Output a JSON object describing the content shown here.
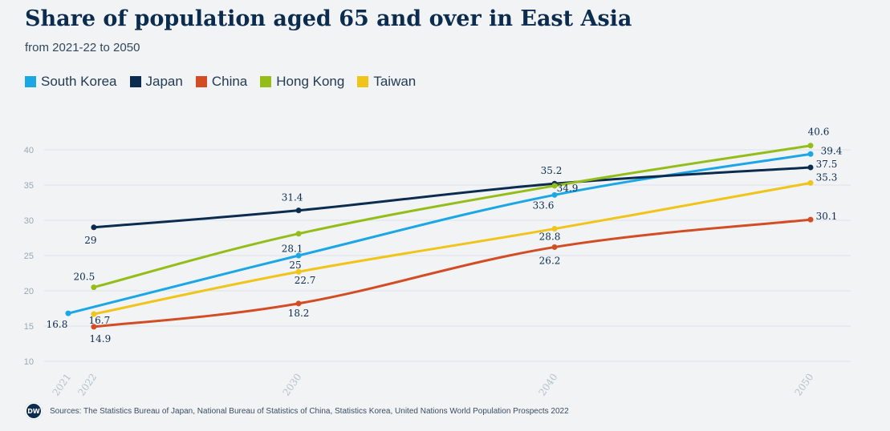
{
  "header": {
    "title": "Share of population aged 65 and over in East Asia",
    "subtitle": "from 2021-22 to 2050"
  },
  "footer": {
    "logo_text": "DW",
    "source": "Sources: The Statistics Bureau of Japan, National Bureau of Statistics of China, Statistics Korea, United Nations World Population Prospects 2022"
  },
  "chart_data": {
    "type": "line",
    "title": "Share of population aged 65 and over in East Asia",
    "subtitle": "from 2021-22 to 2050",
    "xlabel": "",
    "ylabel": "",
    "x_ticks": [
      "2021",
      "2022",
      "2030",
      "2040",
      "2050"
    ],
    "y_ticks": [
      10,
      15,
      20,
      25,
      30,
      35,
      40
    ],
    "ylim": [
      10,
      40
    ],
    "grid": "horizontal",
    "legend_position": "top-left",
    "series": [
      {
        "name": "South Korea",
        "color": "#1ba7e6",
        "x": [
          2021,
          2030,
          2040,
          2050
        ],
        "values": [
          16.8,
          25,
          33.6,
          39.4
        ]
      },
      {
        "name": "Japan",
        "color": "#0c2c4f",
        "x": [
          2022,
          2030,
          2040,
          2050
        ],
        "values": [
          29,
          31.4,
          35.2,
          37.5
        ]
      },
      {
        "name": "China",
        "color": "#d24d24",
        "x": [
          2022,
          2030,
          2040,
          2050
        ],
        "values": [
          14.9,
          18.2,
          26.2,
          30.1
        ]
      },
      {
        "name": "Hong Kong",
        "color": "#95bd19",
        "x": [
          2022,
          2030,
          2040,
          2050
        ],
        "values": [
          20.5,
          28.1,
          34.9,
          40.6
        ]
      },
      {
        "name": "Taiwan",
        "color": "#f0c419",
        "x": [
          2022,
          2030,
          2040,
          2050
        ],
        "values": [
          16.7,
          22.7,
          28.8,
          35.3
        ]
      }
    ],
    "data_labels": [
      {
        "text": "16.8",
        "color": "#0c2c4f"
      },
      {
        "text": "25",
        "color": "#0c2c4f"
      },
      {
        "text": "33.6",
        "color": "#0c2c4f"
      },
      {
        "text": "39.4",
        "color": "#0c2c4f"
      },
      {
        "text": "29",
        "color": "#0c2c4f"
      },
      {
        "text": "31.4",
        "color": "#0c2c4f"
      },
      {
        "text": "35.2",
        "color": "#0c2c4f"
      },
      {
        "text": "37.5",
        "color": "#0c2c4f"
      },
      {
        "text": "14.9",
        "color": "#0c2c4f"
      },
      {
        "text": "18.2",
        "color": "#0c2c4f"
      },
      {
        "text": "26.2",
        "color": "#0c2c4f"
      },
      {
        "text": "30.1",
        "color": "#0c2c4f"
      },
      {
        "text": "20.5",
        "color": "#0c2c4f"
      },
      {
        "text": "28.1",
        "color": "#0c2c4f"
      },
      {
        "text": "34.9",
        "color": "#0c2c4f"
      },
      {
        "text": "40.6",
        "color": "#0c2c4f"
      },
      {
        "text": "16.7",
        "color": "#0c2c4f"
      },
      {
        "text": "22.7",
        "color": "#0c2c4f"
      },
      {
        "text": "28.8",
        "color": "#0c2c4f"
      },
      {
        "text": "35.3",
        "color": "#0c2c4f"
      }
    ]
  }
}
